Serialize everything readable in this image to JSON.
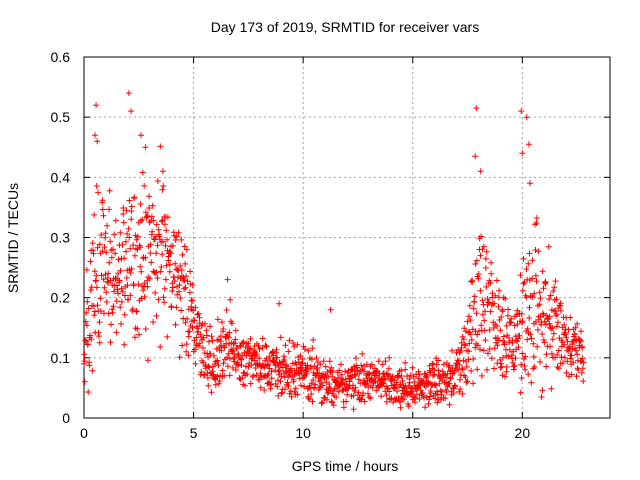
{
  "chart_data": {
    "type": "scatter",
    "title": "Day 173 of 2019, SRMTID for receiver vars",
    "xlabel": "GPS time / hours",
    "ylabel": "SRMTID / TECUs",
    "xlim": [
      0,
      24
    ],
    "ylim": [
      0,
      0.6
    ],
    "x_ticks": [
      0,
      5,
      10,
      15,
      20
    ],
    "y_ticks": [
      0,
      0.1,
      0.2,
      0.3,
      0.4,
      0.5,
      0.6
    ],
    "x_tick_labels": [
      "0",
      "5",
      "10",
      "15",
      "20"
    ],
    "y_tick_labels": [
      "0",
      "0.1",
      "0.2",
      "0.3",
      "0.4",
      "0.5",
      "0.6"
    ],
    "grid": true,
    "marker": "+",
    "series_color": "#ff0000",
    "grid_color": "#a0a0a0",
    "profile_hours": [
      0,
      0.2,
      0.5,
      1,
      1.5,
      2,
      2.5,
      3,
      3.5,
      4,
      4.5,
      5,
      5.5,
      6,
      6.5,
      7,
      8,
      9,
      10,
      11,
      12,
      13,
      14,
      15,
      16,
      16.5,
      17,
      17.5,
      18,
      18.5,
      19,
      19.5,
      20,
      20.5,
      21,
      21.5,
      22,
      22.8
    ],
    "profile_mean": [
      0.09,
      0.18,
      0.24,
      0.25,
      0.24,
      0.25,
      0.26,
      0.27,
      0.26,
      0.25,
      0.21,
      0.16,
      0.12,
      0.08,
      0.13,
      0.1,
      0.09,
      0.08,
      0.075,
      0.06,
      0.06,
      0.065,
      0.06,
      0.05,
      0.06,
      0.06,
      0.08,
      0.12,
      0.2,
      0.18,
      0.14,
      0.12,
      0.16,
      0.2,
      0.18,
      0.15,
      0.12,
      0.1
    ],
    "profile_spread": [
      0.04,
      0.08,
      0.09,
      0.08,
      0.07,
      0.08,
      0.09,
      0.09,
      0.08,
      0.07,
      0.06,
      0.05,
      0.04,
      0.03,
      0.05,
      0.03,
      0.03,
      0.03,
      0.03,
      0.025,
      0.025,
      0.025,
      0.025,
      0.02,
      0.025,
      0.025,
      0.03,
      0.05,
      0.09,
      0.07,
      0.05,
      0.04,
      0.08,
      0.09,
      0.07,
      0.05,
      0.04,
      0.03
    ],
    "peaks": [
      {
        "x": 0.55,
        "y": 0.52
      },
      {
        "x": 0.5,
        "y": 0.47
      },
      {
        "x": 0.6,
        "y": 0.46
      },
      {
        "x": 2.05,
        "y": 0.54
      },
      {
        "x": 2.15,
        "y": 0.51
      },
      {
        "x": 2.6,
        "y": 0.47
      },
      {
        "x": 2.8,
        "y": 0.45
      },
      {
        "x": 3.6,
        "y": 0.41
      },
      {
        "x": 17.9,
        "y": 0.515
      },
      {
        "x": 17.85,
        "y": 0.435
      },
      {
        "x": 18.1,
        "y": 0.41
      },
      {
        "x": 19.95,
        "y": 0.51
      },
      {
        "x": 20.2,
        "y": 0.5
      },
      {
        "x": 20.3,
        "y": 0.455
      },
      {
        "x": 20.0,
        "y": 0.44
      },
      {
        "x": 20.35,
        "y": 0.39
      },
      {
        "x": 8.9,
        "y": 0.19
      },
      {
        "x": 6.55,
        "y": 0.23
      },
      {
        "x": 11.25,
        "y": 0.18
      }
    ],
    "n_points": 1500,
    "random_seed": 173
  }
}
